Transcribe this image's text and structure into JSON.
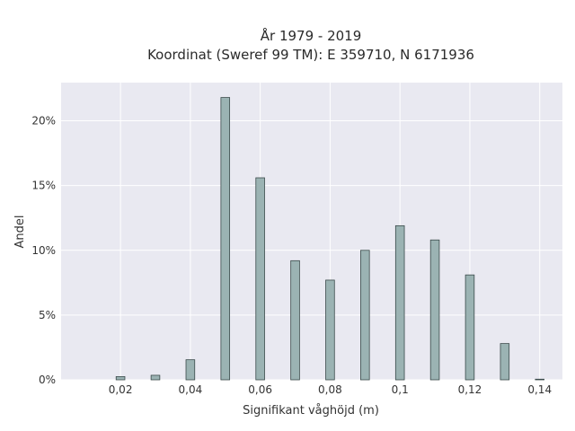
{
  "chart_data": {
    "type": "bar",
    "title_line1": "År 1979 - 2019",
    "title_line2": "Koordinat (Sweref 99 TM): E 359710, N 6171936",
    "xlabel": "Signifikant våghöjd (m)",
    "ylabel": "Andel",
    "x": [
      0.02,
      0.03,
      0.04,
      0.05,
      0.06,
      0.07,
      0.08,
      0.09,
      0.1,
      0.11,
      0.12,
      0.13,
      0.14
    ],
    "values": [
      0.25,
      0.35,
      1.55,
      21.8,
      15.6,
      9.2,
      7.7,
      10.0,
      11.9,
      10.8,
      8.1,
      2.8,
      0.05
    ],
    "xlim": [
      0.003,
      0.1465
    ],
    "ylim": [
      0,
      22.95
    ],
    "xticks": [
      0.02,
      0.04,
      0.06,
      0.08,
      0.1,
      0.12,
      0.14
    ],
    "xtick_labels": [
      "0,02",
      "0,04",
      "0,06",
      "0,08",
      "0,1",
      "0,12",
      "0,14"
    ],
    "yticks": [
      0,
      5,
      10,
      15,
      20
    ],
    "ytick_labels": [
      "0%",
      "5%",
      "10%",
      "15%",
      "20%"
    ],
    "bar_width": 0.0025,
    "grid": true,
    "colors": {
      "bar_fill": "#9bb3b3",
      "bar_edge": "#3a4a4a",
      "plot_bg": "#e9e9f1",
      "grid": "#ffffff"
    }
  }
}
